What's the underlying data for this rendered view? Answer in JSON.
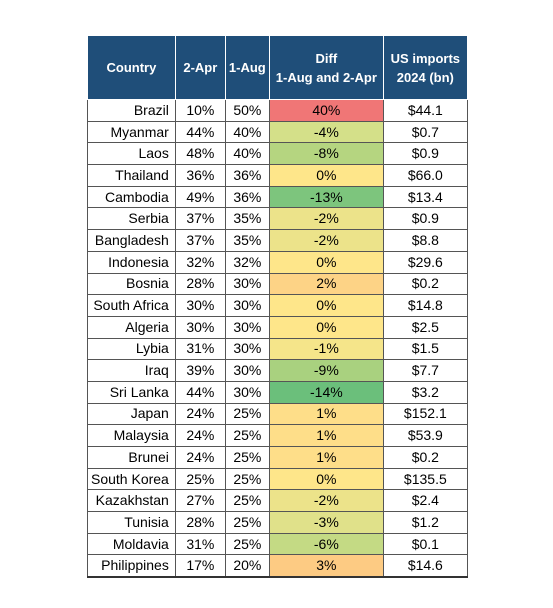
{
  "headers": {
    "country": "Country",
    "apr": "2-Apr",
    "aug": "1-Aug",
    "diff_line1": "Diff",
    "diff_line2": "1-Aug and 2-Apr",
    "imports_line1": "US imports",
    "imports_line2": "2024 (bn)"
  },
  "rows": [
    {
      "country": "Brazil",
      "apr": "10%",
      "aug": "50%",
      "diff": "40%",
      "imports": "$44.1",
      "diff_color": "#f07676"
    },
    {
      "country": "Myanmar",
      "apr": "44%",
      "aug": "40%",
      "diff": "-4%",
      "imports": "$0.7",
      "diff_color": "#d4e089"
    },
    {
      "country": "Laos",
      "apr": "48%",
      "aug": "40%",
      "diff": "-8%",
      "imports": "$0.9",
      "diff_color": "#b5d580"
    },
    {
      "country": "Thailand",
      "apr": "36%",
      "aug": "36%",
      "diff": "0%",
      "imports": "$66.0",
      "diff_color": "#fee68a"
    },
    {
      "country": "Cambodia",
      "apr": "49%",
      "aug": "36%",
      "diff": "-13%",
      "imports": "$13.4",
      "diff_color": "#7dc57d"
    },
    {
      "country": "Serbia",
      "apr": "37%",
      "aug": "35%",
      "diff": "-2%",
      "imports": "$0.9",
      "diff_color": "#ece38a"
    },
    {
      "country": "Bangladesh",
      "apr": "37%",
      "aug": "35%",
      "diff": "-2%",
      "imports": "$8.8",
      "diff_color": "#ece38a"
    },
    {
      "country": "Indonesia",
      "apr": "32%",
      "aug": "32%",
      "diff": "0%",
      "imports": "$29.6",
      "diff_color": "#fee68a"
    },
    {
      "country": "Bosnia",
      "apr": "28%",
      "aug": "30%",
      "diff": "2%",
      "imports": "$0.2",
      "diff_color": "#fdd386"
    },
    {
      "country": "South Africa",
      "apr": "30%",
      "aug": "30%",
      "diff": "0%",
      "imports": "$14.8",
      "diff_color": "#fee68a"
    },
    {
      "country": "Algeria",
      "apr": "30%",
      "aug": "30%",
      "diff": "0%",
      "imports": "$2.5",
      "diff_color": "#fee68a"
    },
    {
      "country": "Lybia",
      "apr": "31%",
      "aug": "30%",
      "diff": "-1%",
      "imports": "$1.5",
      "diff_color": "#f5e58a"
    },
    {
      "country": "Iraq",
      "apr": "39%",
      "aug": "30%",
      "diff": "-9%",
      "imports": "$7.7",
      "diff_color": "#a9d17f"
    },
    {
      "country": "Sri Lanka",
      "apr": "44%",
      "aug": "30%",
      "diff": "-14%",
      "imports": "$3.2",
      "diff_color": "#6bbf7b"
    },
    {
      "country": "Japan",
      "apr": "24%",
      "aug": "25%",
      "diff": "1%",
      "imports": "$152.1",
      "diff_color": "#fede89"
    },
    {
      "country": "Malaysia",
      "apr": "24%",
      "aug": "25%",
      "diff": "1%",
      "imports": "$53.9",
      "diff_color": "#fede89"
    },
    {
      "country": "Brunei",
      "apr": "24%",
      "aug": "25%",
      "diff": "1%",
      "imports": "$0.2",
      "diff_color": "#fede89"
    },
    {
      "country": "South Korea",
      "apr": "25%",
      "aug": "25%",
      "diff": "0%",
      "imports": "$135.5",
      "diff_color": "#fee68a"
    },
    {
      "country": "Kazakhstan",
      "apr": "27%",
      "aug": "25%",
      "diff": "-2%",
      "imports": "$2.4",
      "diff_color": "#ece38a"
    },
    {
      "country": "Tunisia",
      "apr": "28%",
      "aug": "25%",
      "diff": "-3%",
      "imports": "$1.2",
      "diff_color": "#e0e18a"
    },
    {
      "country": "Moldavia",
      "apr": "31%",
      "aug": "25%",
      "diff": "-6%",
      "imports": "$0.1",
      "diff_color": "#c4da84"
    },
    {
      "country": "Philippines",
      "apr": "17%",
      "aug": "20%",
      "diff": "3%",
      "imports": "$14.6",
      "diff_color": "#fdcb83"
    }
  ]
}
